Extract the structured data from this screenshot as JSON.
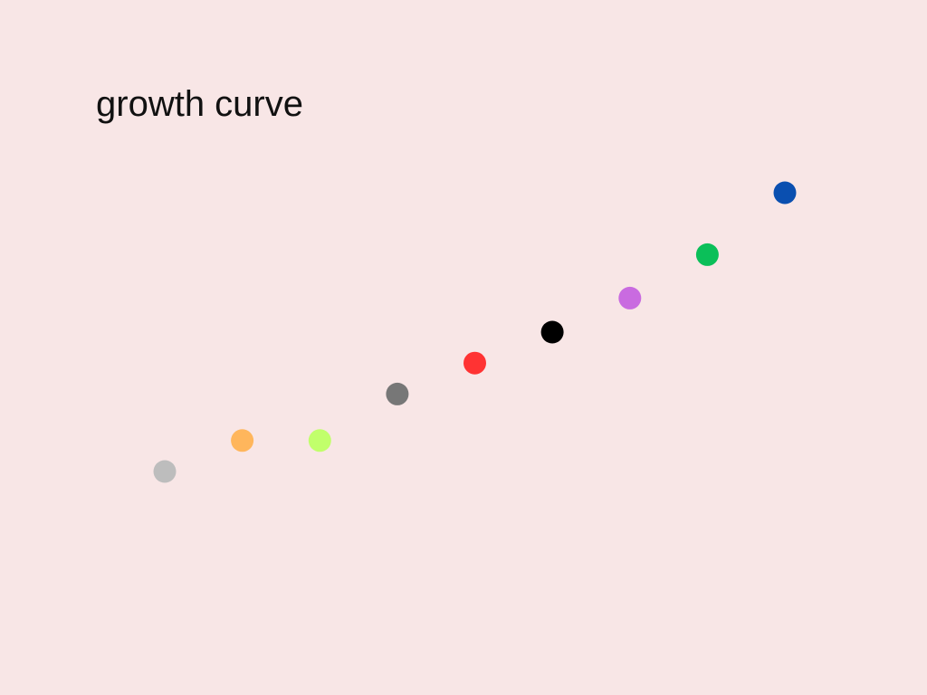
{
  "chart_data": {
    "type": "scatter",
    "title": "growth curve",
    "xlabel": "",
    "ylabel": "",
    "grid": false,
    "legend": "none",
    "points": [
      {
        "x": 1,
        "y": 1.0,
        "color": "#bdbdbd"
      },
      {
        "x": 2,
        "y": 2.0,
        "color": "#ffb65c"
      },
      {
        "x": 3,
        "y": 2.0,
        "color": "#c1ff6b"
      },
      {
        "x": 4,
        "y": 3.5,
        "color": "#777777"
      },
      {
        "x": 5,
        "y": 4.5,
        "color": "#ff3333"
      },
      {
        "x": 6,
        "y": 5.5,
        "color": "#000000"
      },
      {
        "x": 7,
        "y": 6.6,
        "color": "#c96be0"
      },
      {
        "x": 8,
        "y": 8.0,
        "color": "#0bbf59"
      },
      {
        "x": 9,
        "y": 10.0,
        "color": "#0a4fb0"
      }
    ]
  }
}
